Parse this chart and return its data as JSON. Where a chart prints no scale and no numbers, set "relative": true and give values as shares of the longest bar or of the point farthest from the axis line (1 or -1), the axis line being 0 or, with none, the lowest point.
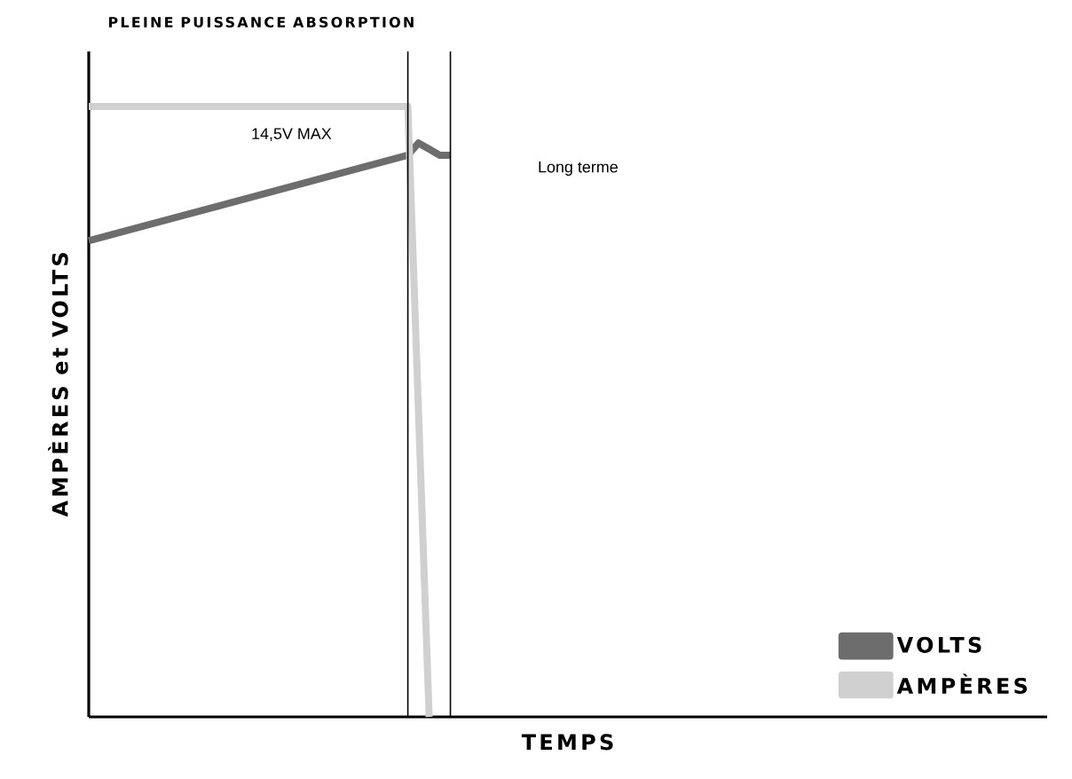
{
  "chart_data": {
    "type": "line",
    "relative": true,
    "title": "PLEINE PUISSANCE ABSORPTION",
    "xlabel": "TEMPS",
    "ylabel": "AMPÈRES et VOLTS",
    "tick_labels": false,
    "legend": "bottom right",
    "line_style": "solid",
    "marker": "none",
    "categories": [
      null,
      null,
      null,
      null,
      null,
      null,
      null,
      null,
      null,
      null,
      null,
      null,
      null,
      null,
      null,
      null,
      null,
      null,
      null,
      null,
      null,
      null,
      null,
      null,
      null,
      null,
      null,
      null,
      null,
      null,
      null,
      null,
      null,
      null,
      null
    ],
    "series": [
      {
        "name": "VOLTS",
        "color": "#6d6d6d",
        "values": [
          0.78,
          null,
          null,
          null,
          null,
          null,
          null,
          null,
          null,
          null,
          null,
          null,
          null,
          null,
          null,
          null,
          null,
          null,
          null,
          null,
          null,
          null,
          null,
          null,
          null,
          null,
          null,
          null,
          null,
          null,
          0.92,
          0.94,
          0.93,
          0.92,
          0.92
        ]
      },
      {
        "name": "AMPÈRES",
        "color": "#d0d0d0",
        "values": [
          1,
          null,
          null,
          null,
          null,
          null,
          null,
          null,
          null,
          null,
          null,
          null,
          null,
          null,
          null,
          null,
          null,
          null,
          null,
          null,
          null,
          null,
          null,
          null,
          null,
          null,
          null,
          null,
          null,
          null,
          1,
          null,
          0,
          null,
          null
        ]
      }
    ],
    "annotations": [
      "14,5V MAX",
      "Long terme"
    ]
  }
}
